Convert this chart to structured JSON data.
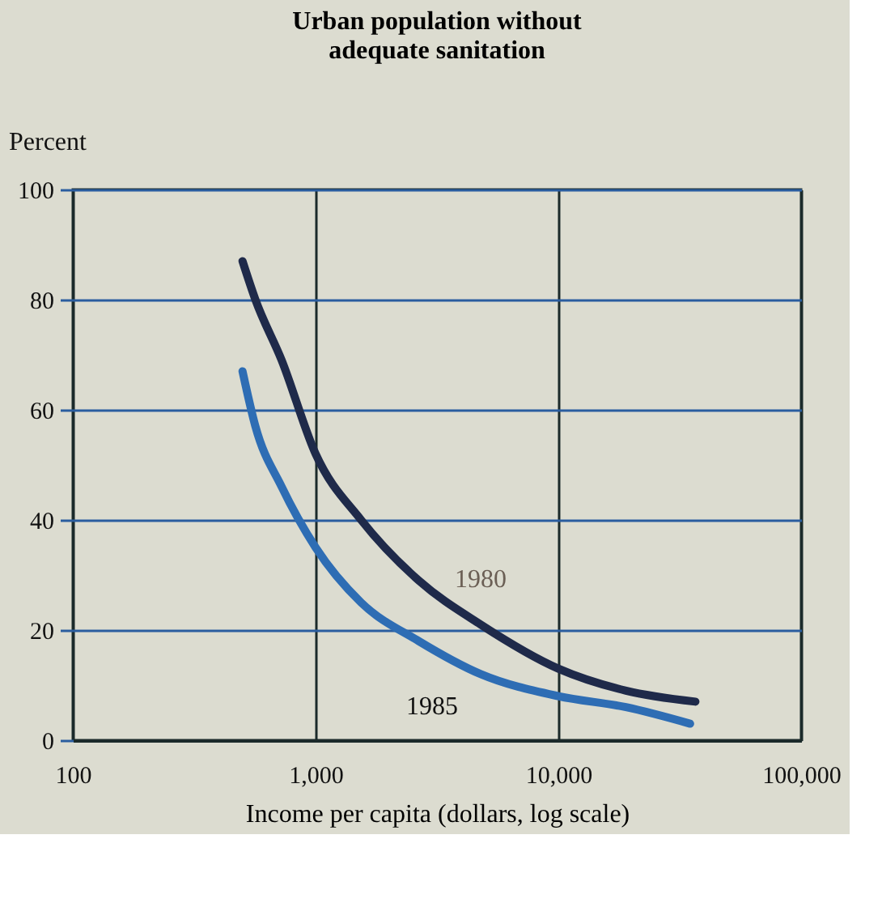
{
  "chart_data": {
    "type": "line",
    "title": "Urban population without\nadequate sanitation",
    "xlabel": "Income per capita (dollars, log scale)",
    "ylabel": "Percent",
    "log": "x",
    "xlim": [
      100,
      100000
    ],
    "xticks": [
      {
        "value": 100,
        "label": "100"
      },
      {
        "value": 1000,
        "label": "1,000"
      },
      {
        "value": 10000,
        "label": "10,000"
      },
      {
        "value": 100000,
        "label": "100,000"
      }
    ],
    "ylim": [
      0,
      100
    ],
    "yticks": [
      0,
      20,
      40,
      60,
      80,
      100
    ],
    "grid": true,
    "marker": "none",
    "line_style": "solid",
    "series": [
      {
        "name": "1980",
        "color": "#1f2a4a",
        "x": [
          500,
          565,
          725,
          1000,
          1540,
          2660,
          4790,
          10000,
          19000,
          36700
        ],
        "values": [
          87,
          80,
          69,
          52,
          40,
          29,
          21,
          13,
          9,
          7
        ]
      },
      {
        "name": "1985",
        "color": "#2e6db4",
        "x": [
          500,
          565,
          725,
          1000,
          1540,
          2660,
          4790,
          10000,
          19000,
          34900
        ],
        "values": [
          67,
          57,
          46,
          35,
          25,
          18,
          12,
          8,
          6,
          3
        ]
      }
    ]
  }
}
